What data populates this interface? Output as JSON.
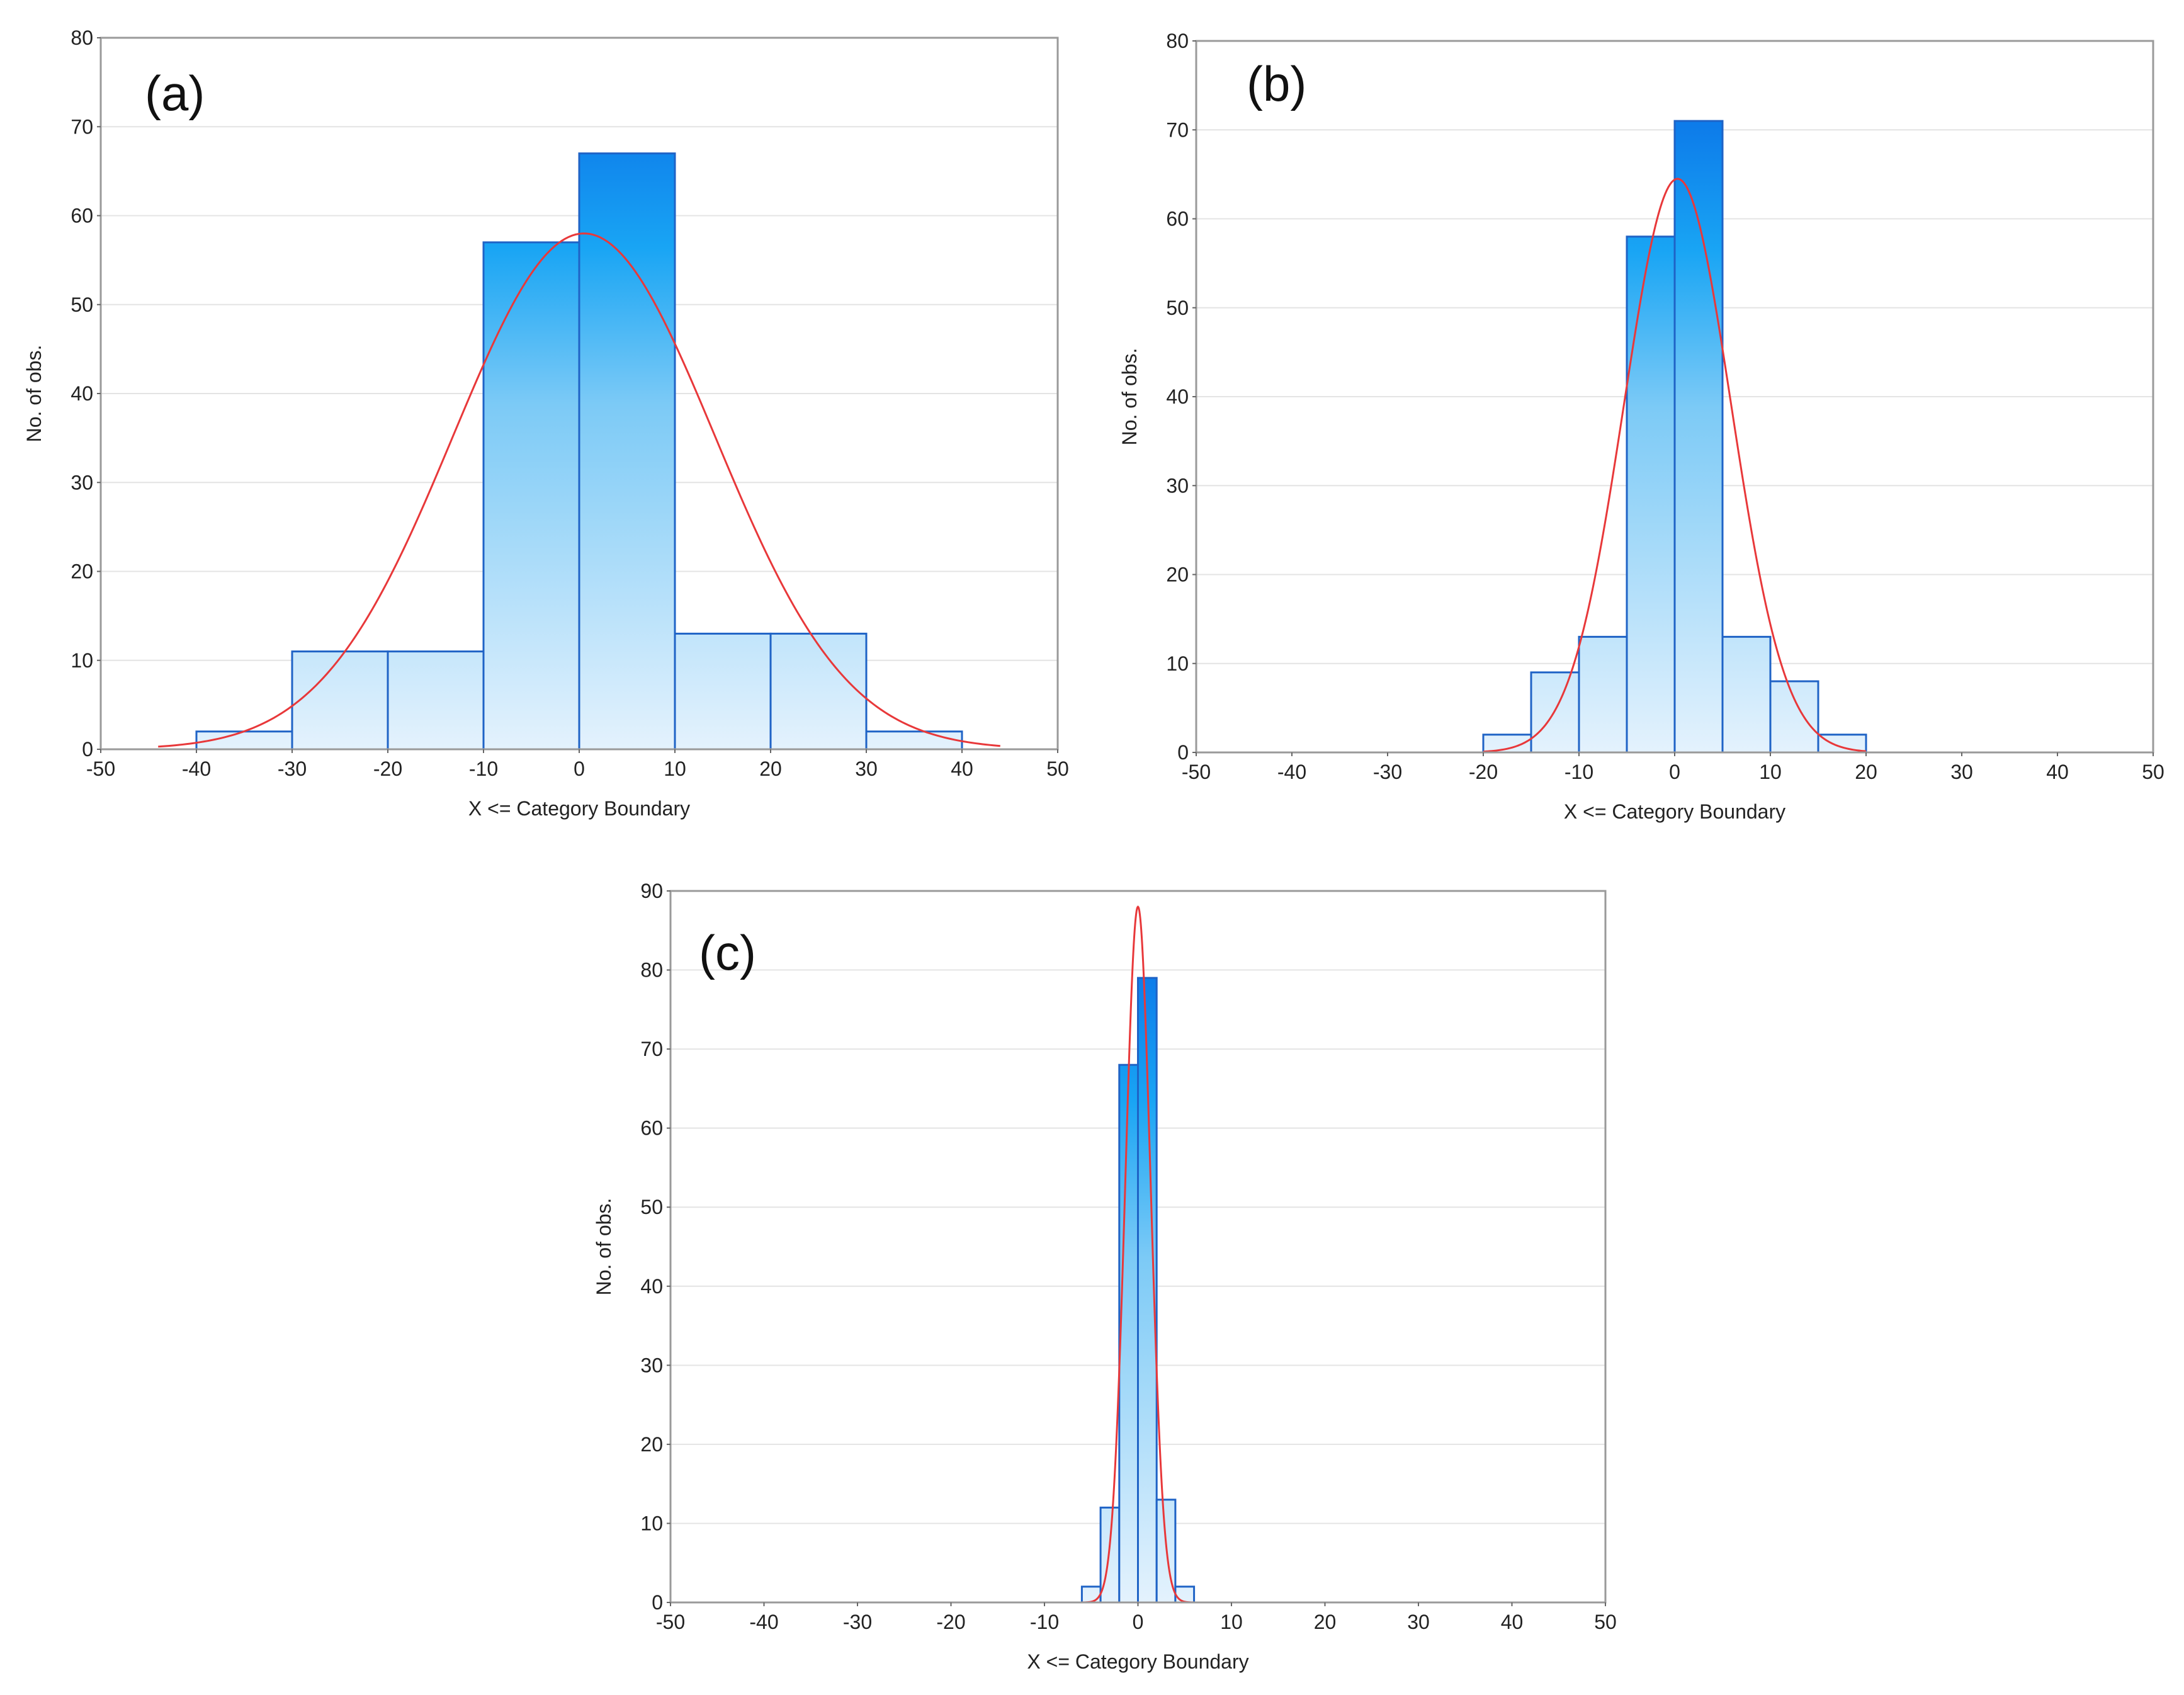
{
  "chart_data": [
    {
      "type": "bar",
      "panel_label": "(a)",
      "xlabel": "X <= Category Boundary",
      "ylabel": "No. of obs.",
      "xlim": [
        -50,
        50
      ],
      "ylim": [
        0,
        80
      ],
      "xticks": [
        -50,
        -40,
        -30,
        -20,
        -10,
        0,
        10,
        20,
        30,
        40,
        50
      ],
      "yticks": [
        0,
        10,
        20,
        30,
        40,
        50,
        60,
        70,
        80
      ],
      "bins": [
        {
          "from": -40,
          "to": -30,
          "value": 2
        },
        {
          "from": -30,
          "to": -20,
          "value": 11
        },
        {
          "from": -20,
          "to": -10,
          "value": 11
        },
        {
          "from": -10,
          "to": 0,
          "value": 57
        },
        {
          "from": 0,
          "to": 10,
          "value": 67
        },
        {
          "from": 10,
          "to": 20,
          "value": 13
        },
        {
          "from": 20,
          "to": 30,
          "value": 13
        },
        {
          "from": 30,
          "to": 40,
          "value": 2
        }
      ],
      "normal_fit": {
        "mean": 0.5,
        "sd": 13.7,
        "peak": 58,
        "x_range": [
          -44,
          44
        ]
      }
    },
    {
      "type": "bar",
      "panel_label": "(b)",
      "xlabel": "X <= Category Boundary",
      "ylabel": "No. of obs.",
      "xlim": [
        -50,
        50
      ],
      "ylim": [
        0,
        80
      ],
      "xticks": [
        -50,
        -40,
        -30,
        -20,
        -10,
        0,
        10,
        20,
        30,
        40,
        50
      ],
      "yticks": [
        0,
        10,
        20,
        30,
        40,
        50,
        60,
        70,
        80
      ],
      "bins": [
        {
          "from": -20,
          "to": -15,
          "value": 2
        },
        {
          "from": -15,
          "to": -10,
          "value": 9
        },
        {
          "from": -10,
          "to": -5,
          "value": 13
        },
        {
          "from": -5,
          "to": 0,
          "value": 58
        },
        {
          "from": 0,
          "to": 5,
          "value": 71
        },
        {
          "from": 5,
          "to": 10,
          "value": 13
        },
        {
          "from": 10,
          "to": 15,
          "value": 8
        },
        {
          "from": 15,
          "to": 20,
          "value": 2
        }
      ],
      "normal_fit": {
        "mean": 0.3,
        "sd": 5.6,
        "peak": 64.5,
        "x_range": [
          -20,
          20
        ]
      }
    },
    {
      "type": "bar",
      "panel_label": "(c)",
      "xlabel": "X <= Category Boundary",
      "ylabel": "No. of obs.",
      "xlim": [
        -50,
        50
      ],
      "ylim": [
        0,
        90
      ],
      "xticks": [
        -50,
        -40,
        -30,
        -20,
        -10,
        0,
        10,
        20,
        30,
        40,
        50
      ],
      "yticks": [
        0,
        10,
        20,
        30,
        40,
        50,
        60,
        70,
        80,
        90
      ],
      "bins": [
        {
          "from": -6,
          "to": -4,
          "value": 2
        },
        {
          "from": -4,
          "to": -2,
          "value": 12
        },
        {
          "from": -2,
          "to": 0,
          "value": 68
        },
        {
          "from": 0,
          "to": 2,
          "value": 79
        },
        {
          "from": 2,
          "to": 4,
          "value": 13
        },
        {
          "from": 4,
          "to": 6,
          "value": 2
        }
      ],
      "normal_fit": {
        "mean": 0.0,
        "sd": 1.35,
        "peak": 88,
        "x_range": [
          -6,
          6
        ]
      }
    }
  ]
}
